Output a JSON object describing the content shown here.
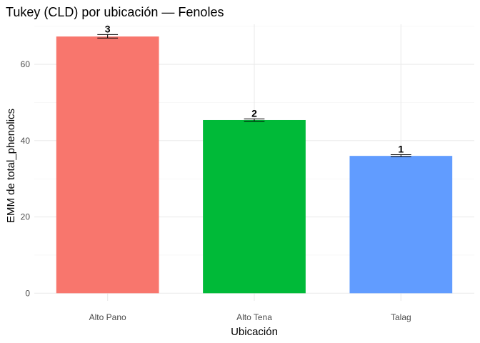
{
  "chart_data": {
    "type": "bar",
    "title": "Tukey (CLD) por ubicación — Fenoles",
    "xlabel": "Ubicación",
    "ylabel": "EMM de total_phenolics",
    "categories": [
      "Alto Pano",
      "Alto Tena",
      "Talag"
    ],
    "values": [
      67.3,
      45.4,
      36.0
    ],
    "error_low": [
      66.9,
      45.1,
      35.8
    ],
    "error_high": [
      67.8,
      45.7,
      36.3
    ],
    "cld_letters": [
      "3",
      "2",
      "1"
    ],
    "colors": [
      "#F8766D",
      "#00BA38",
      "#619CFF"
    ],
    "ylim": [
      -2,
      70.5
    ],
    "yticks": [
      0,
      20,
      40,
      60
    ],
    "grid": true,
    "legend": "none"
  }
}
